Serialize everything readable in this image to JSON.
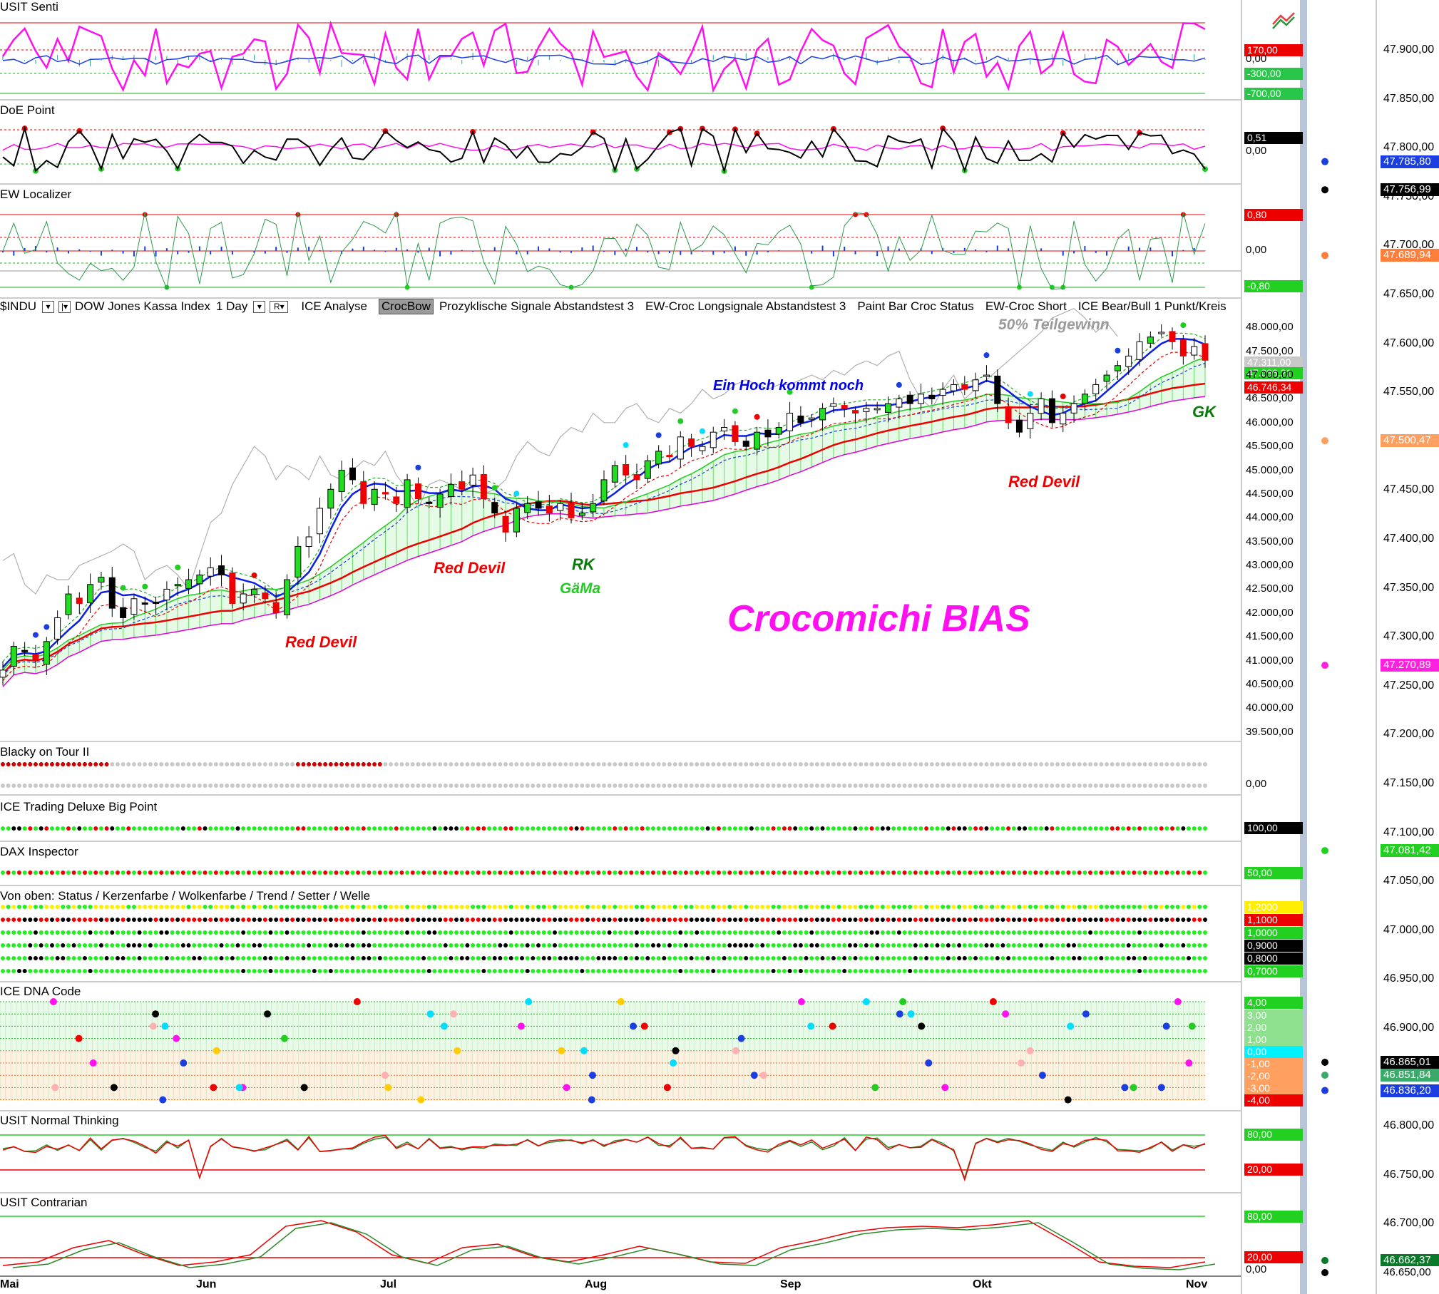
{
  "panels": {
    "usit_senti": "USIT Senti",
    "doe_point": "DoE Point",
    "ew_localizer": "EW Localizer",
    "blacky": "Blacky on Tour II",
    "ice_deluxe": "ICE Trading Deluxe Big Point",
    "dax_inspector": "DAX Inspector",
    "von_oben": "Von oben: Status / Kerzenfarbe / Wolkenfarbe / Trend / Setter / Welle",
    "dna": "ICE DNA Code",
    "normal_thinking": "USIT Normal Thinking",
    "contrarian": "USIT Contrarian"
  },
  "toolbar": {
    "symbol": "$INDU",
    "instrument": "DOW Jones Kassa Index",
    "interval": "1 Day",
    "r_button": "R",
    "items": [
      "ICE Analyse",
      "CrocBow",
      "Prozyklische Signale Abstandstest 3",
      "EW-Croc Longsignale Abstandstest 3",
      "Paint Bar Croc Status",
      "EW-Croc Short",
      "ICE Bear/Bull 1 Punkt/Kreis"
    ]
  },
  "annotations": {
    "teilgewinn": "50% Teilgewinn",
    "hoch": "Ein Hoch kommt noch",
    "red_devil": "Red Devil",
    "rk": "RK",
    "gama": "GäMa",
    "bias": "Crocomichi BIAS",
    "gk": "GK"
  },
  "value_labels": {
    "senti": [
      "170,00",
      "0,00",
      "-300,00",
      "-700,00"
    ],
    "doe": [
      "0,51",
      "0,00"
    ],
    "ew": [
      "0,80",
      "0,00",
      "-0,80"
    ],
    "main_boxes": [
      "47.311,00",
      "47.086,21",
      "46.746,34"
    ],
    "blacky": "0,00",
    "deluxe": "100,00",
    "dax": "50,00",
    "von_oben": [
      "1,2000",
      "1,1000",
      "1,0000",
      "0,9000",
      "0,8000",
      "0,7000"
    ],
    "dna": [
      "4,00",
      "3,00",
      "2,00",
      "1,00",
      "0,00",
      "-1,00",
      "-2,00",
      "-3,00",
      "-4,00"
    ],
    "nt": [
      "80,00",
      "20,00"
    ],
    "contrarian": [
      "80,00",
      "20,00",
      "0,00"
    ]
  },
  "right_axis": {
    "ticks": [
      "47.900,00",
      "47.850,00",
      "47.800,00",
      "47.750,00",
      "47.700,00",
      "47.650,00",
      "47.600,00",
      "47.550,00",
      "47.500,00",
      "47.450,00",
      "47.400,00",
      "47.350,00",
      "47.300,00",
      "47.250,00",
      "47.200,00",
      "47.150,00",
      "47.100,00",
      "47.050,00",
      "47.000,00",
      "46.950,00",
      "46.900,00",
      "46.850,00",
      "46.800,00",
      "46.750,00",
      "46.700,00",
      "46.650,00"
    ],
    "boxes": [
      {
        "label": "47.785,80",
        "color": "#1a3ee0"
      },
      {
        "label": "47.756,99",
        "color": "#000000"
      },
      {
        "label": "47.689,94",
        "color": "#ff7f3a"
      },
      {
        "label": "47.500,47",
        "color": "#ffa060"
      },
      {
        "label": "47.270,89",
        "color": "#ff20e0"
      },
      {
        "label": "47.081,42",
        "color": "#22d022"
      },
      {
        "label": "46.865,01",
        "color": "#000000"
      },
      {
        "label": "46.851,84",
        "color": "#3aaa6a"
      },
      {
        "label": "46.836,20",
        "color": "#1a3ee0"
      },
      {
        "label": "46.662,37",
        "color": "#0a7a2a"
      },
      {
        "label": "46.650,00",
        "color": "#ffffff"
      }
    ]
  },
  "chart_data": {
    "type": "candlestick",
    "title": "",
    "x_months": [
      "Mai",
      "Jun",
      "Jul",
      "Aug",
      "Sep",
      "Okt",
      "Nov"
    ],
    "y_ticks": [
      "48.000,00",
      "47.500,00",
      "47.000,00",
      "46.500,00",
      "46.000,00",
      "45.500,00",
      "45.000,00",
      "44.500,00",
      "44.000,00",
      "43.500,00",
      "43.000,00",
      "42.500,00",
      "42.000,00",
      "41.500,00",
      "41.000,00",
      "40.500,00",
      "40.000,00",
      "39.500,00"
    ],
    "ylim": [
      39300,
      48200
    ],
    "close_series": [
      40800,
      41300,
      41200,
      41000,
      41400,
      41900,
      42400,
      42200,
      42600,
      42750,
      42100,
      41900,
      42300,
      42200,
      42200,
      42500,
      42600,
      42700,
      42800,
      42950,
      42800,
      42200,
      42400,
      42500,
      42300,
      42000,
      42700,
      43400,
      43600,
      44200,
      44600,
      45000,
      44800,
      44300,
      44600,
      44500,
      44300,
      44800,
      44400,
      44300,
      44500,
      44700,
      44600,
      44900,
      44400,
      44100,
      43700,
      44200,
      44300,
      44200,
      44100,
      44300,
      44000,
      44100,
      44300,
      44800,
      45100,
      44900,
      44800,
      45200,
      45400,
      45300,
      45700,
      45500,
      45500,
      45800,
      45900,
      45600,
      45500,
      45800,
      45700,
      45900,
      46200,
      46000,
      46100,
      46300,
      46400,
      46300,
      46200,
      46300,
      46300,
      46400,
      46500,
      46400,
      46600,
      46500,
      46700,
      46800,
      46700,
      46900,
      47000,
      46400,
      46000,
      45800,
      46200,
      46500,
      46000,
      46200,
      46400,
      46600,
      46800,
      47000,
      47200,
      47400,
      47700,
      47800,
      47900,
      47700,
      47400,
      47600,
      47311
    ],
    "series": [
      {
        "name": "",
        "color": "#0a1ee8"
      },
      {
        "name": "",
        "color": "#e80000"
      },
      {
        "name": "",
        "color": "#00c800"
      }
    ]
  }
}
